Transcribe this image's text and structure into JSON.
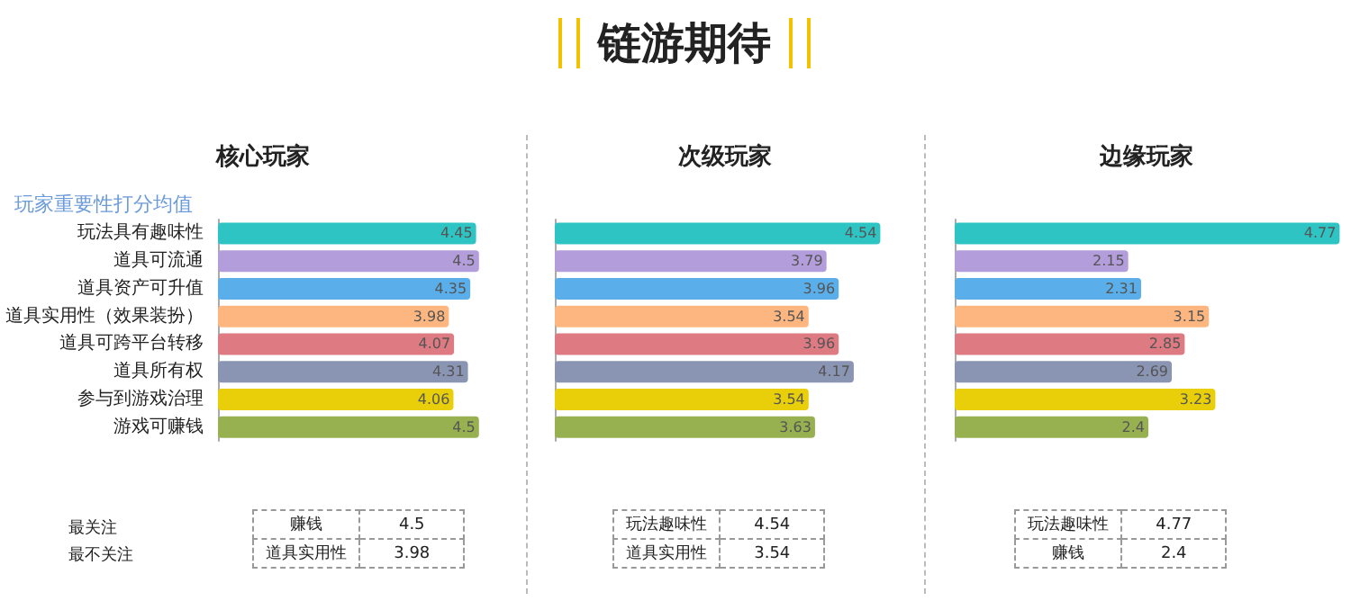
{
  "chart_data": [
    {
      "type": "bar",
      "orientation": "horizontal",
      "subtitle": "核心玩家",
      "ylabel": "玩家重要性打分均值",
      "categories": [
        "玩法具有趣味性",
        "道具可流通",
        "道具资产可升值",
        "道具实用性（效果装扮）",
        "道具可跨平台转移",
        "道具所有权",
        "参与到游戏治理",
        "游戏可赚钱"
      ],
      "values": [
        4.45,
        4.5,
        4.35,
        3.98,
        4.07,
        4.31,
        4.06,
        4.5
      ],
      "colors": [
        "#2ec4c4",
        "#b39ddb",
        "#5aaeea",
        "#fdb67f",
        "#dd7a82",
        "#8a95b4",
        "#e8cf0a",
        "#97b151"
      ],
      "data_labels": true,
      "tick_labels": "y",
      "annotations": [
        "最关注",
        "最不关注",
        "赚钱",
        "4.5",
        "道具实用性",
        "3.98"
      ]
    },
    {
      "type": "bar",
      "orientation": "horizontal",
      "title": "链游期待",
      "subtitle": "次级玩家",
      "categories": [
        null,
        null,
        null,
        null,
        null,
        null,
        null,
        null
      ],
      "values": [
        4.54,
        3.79,
        3.96,
        3.54,
        3.96,
        4.17,
        3.54,
        3.63
      ],
      "colors": [
        "#2ec4c4",
        "#b39ddb",
        "#5aaeea",
        "#fdb67f",
        "#dd7a82",
        "#8a95b4",
        "#e8cf0a",
        "#97b151"
      ],
      "data_labels": true,
      "tick_labels": false,
      "annotations": [
        "玩法趣味性",
        "4.54",
        "道具实用性",
        "3.54"
      ]
    },
    {
      "type": "bar",
      "orientation": "horizontal",
      "subtitle": "边缘玩家",
      "categories": [
        null,
        null,
        null,
        null,
        null,
        null,
        null,
        null
      ],
      "values": [
        4.77,
        2.15,
        2.31,
        3.15,
        2.85,
        2.69,
        3.23,
        2.4
      ],
      "colors": [
        "#2ec4c4",
        "#b39ddb",
        "#5aaeea",
        "#fdb67f",
        "#dd7a82",
        "#8a95b4",
        "#e8cf0a",
        "#97b151"
      ],
      "data_labels": true,
      "tick_labels": false,
      "annotations": [
        "玩法趣味性",
        "4.77",
        "赚钱",
        "2.4"
      ]
    }
  ]
}
